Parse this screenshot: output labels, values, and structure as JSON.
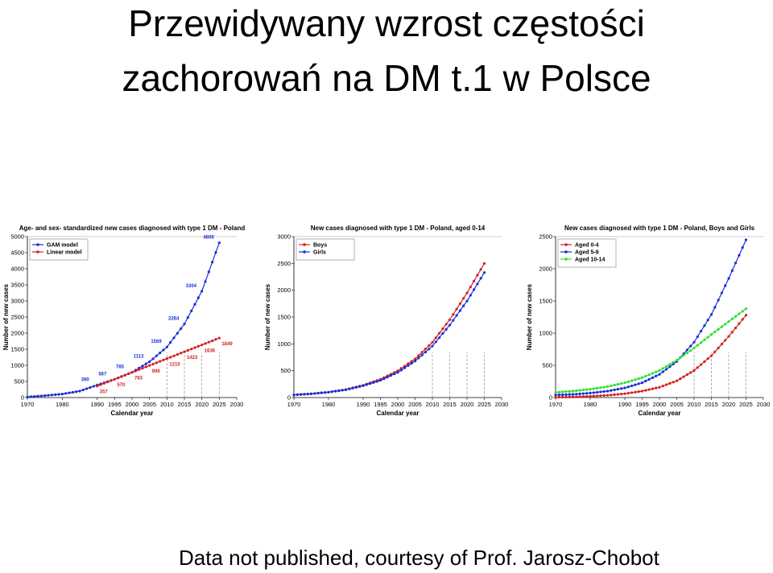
{
  "slide": {
    "title_line1": "Przewidywany wzrost częstości",
    "title_line2": "zachorowań na DM t.1 w Polsce",
    "footer": "Data not published, courtesy of Prof. Jarosz-Chobot"
  },
  "colors": {
    "blue": "#1a2fd6",
    "red": "#d42020",
    "green": "#2ee02e",
    "gray": "#888888"
  },
  "chart_data": [
    {
      "type": "line",
      "title": "Age- and sex- standardized new cases diagnosed with type 1 DM - Poland",
      "xlabel": "Calendar year",
      "ylabel": "Number of new cases",
      "xlim": [
        1970,
        2030
      ],
      "ylim": [
        0,
        5000
      ],
      "xticks": [
        "1970",
        "1980",
        "1990",
        "1995",
        "2000",
        "2005",
        "2010",
        "2015",
        "2020",
        "2025",
        "2030"
      ],
      "yticks": [
        "0",
        "500",
        "1000",
        "1500",
        "2000",
        "2500",
        "3000",
        "3500",
        "4000",
        "4500",
        "5000"
      ],
      "legend_position": "top-left",
      "series": [
        {
          "name": "GAM model",
          "color": "#1a2fd6",
          "x": [
            1970,
            1975,
            1980,
            1985,
            1990,
            1995,
            2000,
            2005,
            2010,
            2015,
            2020,
            2025
          ],
          "y": [
            20,
            60,
            110,
            200,
            390,
            567,
            785,
            1113,
            1569,
            2284,
            3304,
            4808
          ]
        },
        {
          "name": "Linear model",
          "color": "#d42020",
          "x": [
            1990,
            1995,
            2000,
            2005,
            2010,
            2015,
            2020,
            2025
          ],
          "y": [
            357,
            570,
            783,
            996,
            1210,
            1423,
            1636,
            1849
          ]
        }
      ],
      "annotations": [
        {
          "x": 1990,
          "y": 390,
          "text": "390",
          "series": "GAM model"
        },
        {
          "x": 1995,
          "y": 567,
          "text": "567",
          "series": "GAM model"
        },
        {
          "x": 2000,
          "y": 785,
          "text": "785",
          "series": "GAM model"
        },
        {
          "x": 2005,
          "y": 1113,
          "text": "1113",
          "series": "GAM model"
        },
        {
          "x": 2010,
          "y": 1569,
          "text": "1569",
          "series": "GAM model"
        },
        {
          "x": 2015,
          "y": 2284,
          "text": "2284",
          "series": "GAM model"
        },
        {
          "x": 2020,
          "y": 3304,
          "text": "3304",
          "series": "GAM model"
        },
        {
          "x": 2025,
          "y": 4808,
          "text": "4808",
          "series": "GAM model"
        },
        {
          "x": 1990,
          "y": 357,
          "text": "357",
          "series": "Linear model"
        },
        {
          "x": 1995,
          "y": 570,
          "text": "570",
          "series": "Linear model"
        },
        {
          "x": 2000,
          "y": 783,
          "text": "783",
          "series": "Linear model"
        },
        {
          "x": 2005,
          "y": 996,
          "text": "996",
          "series": "Linear model"
        },
        {
          "x": 2010,
          "y": 1210,
          "text": "1210",
          "series": "Linear model"
        },
        {
          "x": 2015,
          "y": 1423,
          "text": "1423",
          "series": "Linear model"
        },
        {
          "x": 2020,
          "y": 1636,
          "text": "1636",
          "series": "Linear model"
        },
        {
          "x": 2025,
          "y": 1849,
          "text": "1849",
          "series": "Linear model"
        }
      ]
    },
    {
      "type": "line",
      "title": "New cases diagnosed with type 1 DM - Poland, aged 0-14",
      "xlabel": "Calendar year",
      "ylabel": "Number of new cases",
      "xlim": [
        1970,
        2030
      ],
      "ylim": [
        0,
        3000
      ],
      "xticks": [
        "1970",
        "1980",
        "1990",
        "1995",
        "2000",
        "2005",
        "2010",
        "2015",
        "2020",
        "2025",
        "2030"
      ],
      "yticks": [
        "0",
        "500",
        "1000",
        "1500",
        "2000",
        "2500",
        "3000"
      ],
      "legend_position": "top-left",
      "series": [
        {
          "name": "Boys",
          "color": "#d42020",
          "x": [
            1970,
            1975,
            1980,
            1985,
            1990,
            1995,
            2000,
            2005,
            2010,
            2015,
            2020,
            2025
          ],
          "y": [
            50,
            70,
            100,
            150,
            230,
            340,
            500,
            720,
            1030,
            1450,
            1950,
            2500
          ]
        },
        {
          "name": "Girls",
          "color": "#1a2fd6",
          "x": [
            1970,
            1975,
            1980,
            1985,
            1990,
            1995,
            2000,
            2005,
            2010,
            2015,
            2020,
            2025
          ],
          "y": [
            50,
            70,
            100,
            145,
            220,
            320,
            470,
            680,
            960,
            1350,
            1800,
            2330
          ]
        }
      ]
    },
    {
      "type": "line",
      "title": "New cases diagnosed with type 1 DM - Poland, Boys and Girls",
      "xlabel": "Calendar year",
      "ylabel": "Number of new cases",
      "xlim": [
        1970,
        2030
      ],
      "ylim": [
        0,
        2500
      ],
      "xticks": [
        "1970",
        "1980",
        "1990",
        "1995",
        "2000",
        "2005",
        "2010",
        "2015",
        "2020",
        "2025",
        "2030"
      ],
      "yticks": [
        "0",
        "500",
        "1000",
        "1500",
        "2000",
        "2500"
      ],
      "legend_position": "top-left",
      "series": [
        {
          "name": "Aged 0-4",
          "color": "#d42020",
          "x": [
            1970,
            1975,
            1980,
            1985,
            1990,
            1995,
            2000,
            2005,
            2010,
            2015,
            2020,
            2025
          ],
          "y": [
            5,
            10,
            20,
            35,
            60,
            100,
            160,
            260,
            420,
            650,
            950,
            1280
          ]
        },
        {
          "name": "Aged 5-9",
          "color": "#1a2fd6",
          "x": [
            1970,
            1975,
            1980,
            1985,
            1990,
            1995,
            2000,
            2005,
            2010,
            2015,
            2020,
            2025
          ],
          "y": [
            40,
            50,
            70,
            100,
            150,
            230,
            360,
            560,
            860,
            1290,
            1850,
            2450
          ]
        },
        {
          "name": "Aged 10-14",
          "color": "#2ee02e",
          "x": [
            1970,
            1975,
            1980,
            1985,
            1990,
            1995,
            2000,
            2005,
            2010,
            2015,
            2020,
            2025
          ],
          "y": [
            80,
            100,
            130,
            170,
            230,
            310,
            420,
            580,
            770,
            980,
            1180,
            1380
          ]
        }
      ]
    }
  ]
}
